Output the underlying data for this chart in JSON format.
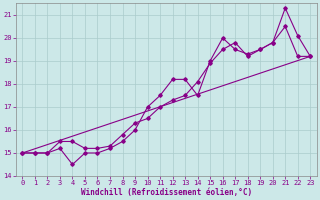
{
  "xlabel": "Windchill (Refroidissement éolien,°C)",
  "background_color": "#cce8e8",
  "grid_color": "#aacccc",
  "line_color": "#880088",
  "xlim": [
    -0.5,
    23.5
  ],
  "ylim": [
    14.0,
    21.5
  ],
  "yticks": [
    14,
    15,
    16,
    17,
    18,
    19,
    20,
    21
  ],
  "xticks": [
    0,
    1,
    2,
    3,
    4,
    5,
    6,
    7,
    8,
    9,
    10,
    11,
    12,
    13,
    14,
    15,
    16,
    17,
    18,
    19,
    20,
    21,
    22,
    23
  ],
  "series1_x": [
    0,
    1,
    2,
    3,
    4,
    5,
    6,
    7,
    8,
    9,
    10,
    11,
    12,
    13,
    14,
    15,
    16,
    17,
    18,
    19,
    20,
    21,
    22,
    23
  ],
  "series1_y": [
    15.0,
    15.0,
    15.0,
    15.2,
    14.5,
    15.0,
    15.0,
    15.2,
    15.5,
    16.0,
    17.0,
    17.5,
    18.2,
    18.2,
    17.5,
    19.0,
    20.0,
    19.5,
    19.3,
    19.5,
    19.8,
    21.3,
    20.1,
    19.2
  ],
  "series2_x": [
    0,
    1,
    2,
    3,
    4,
    5,
    6,
    7,
    8,
    9,
    10,
    11,
    12,
    13,
    14,
    15,
    16,
    17,
    18,
    19,
    20,
    21,
    22,
    23
  ],
  "series2_y": [
    15.0,
    15.0,
    15.0,
    15.5,
    15.5,
    15.2,
    15.2,
    15.3,
    15.8,
    16.3,
    16.5,
    17.0,
    17.3,
    17.5,
    18.1,
    18.9,
    19.5,
    19.8,
    19.2,
    19.5,
    19.8,
    20.5,
    19.2,
    19.2
  ],
  "trend_x": [
    0,
    23
  ],
  "trend_y": [
    15.0,
    19.2
  ],
  "line_width": 0.8,
  "marker": "D",
  "marker_size": 1.8,
  "tick_fontsize": 5.0,
  "label_fontsize": 5.5
}
